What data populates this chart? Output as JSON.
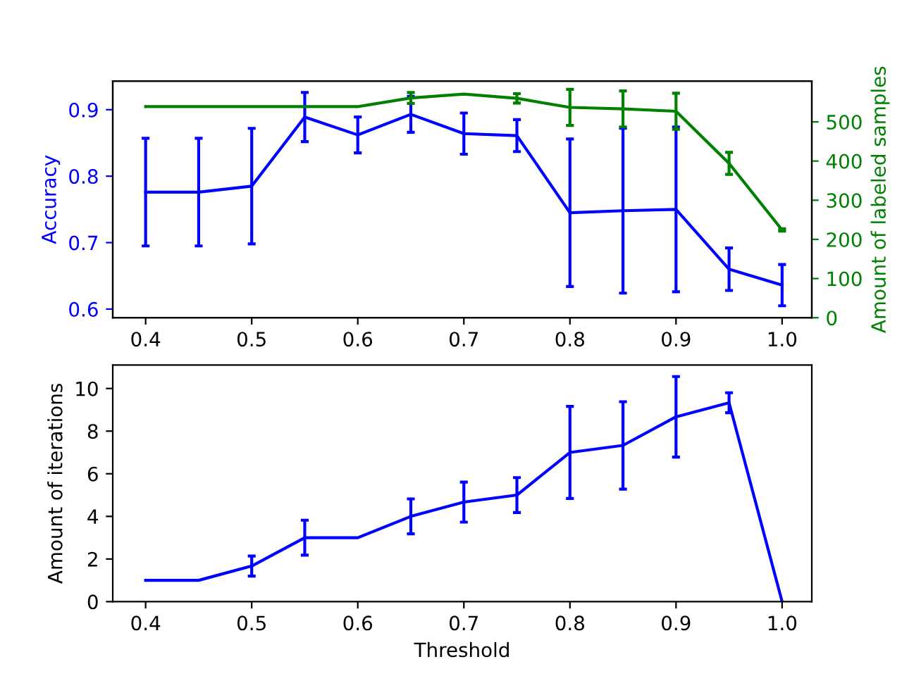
{
  "chart_data": [
    {
      "type": "line",
      "ylabel": "Accuracy",
      "y2label": "Amount of labeled samples",
      "grid": false,
      "marker": "none",
      "line_style": "solid",
      "x": [
        0.4,
        0.45,
        0.5,
        0.55,
        0.6,
        0.65,
        0.7,
        0.75,
        0.8,
        0.85,
        0.9,
        0.95,
        1.0
      ],
      "xlim": [
        0.369,
        1.028
      ],
      "xticks": [
        0.4,
        0.5,
        0.6,
        0.7,
        0.8,
        0.9,
        {
          "value": 1.0,
          "label": "1.0"
        }
      ],
      "ylim": [
        0.587,
        0.943
      ],
      "yticks": [
        0.6,
        0.7,
        0.8,
        0.9
      ],
      "y2lim": [
        0,
        604
      ],
      "y2ticks": [
        0,
        100,
        200,
        300,
        400,
        500
      ],
      "series": [
        {
          "color": "#0000ff",
          "values": [
            0.776,
            0.776,
            0.785,
            0.889,
            0.862,
            0.893,
            0.864,
            0.861,
            0.745,
            0.748,
            0.75,
            0.66,
            0.636
          ],
          "errors": [
            0.081,
            0.081,
            0.087,
            0.037,
            0.027,
            0.027,
            0.031,
            0.024,
            0.111,
            0.124,
            0.124,
            0.032,
            0.031
          ]
        },
        {
          "color": "#008000",
          "axis": "y2",
          "values": [
            539,
            539,
            539,
            539,
            539,
            561,
            571,
            560,
            537,
            533,
            527,
            394,
            224
          ],
          "errors": [
            null,
            null,
            null,
            null,
            null,
            14,
            null,
            12,
            46,
            46,
            46,
            28,
            3
          ]
        }
      ]
    },
    {
      "type": "line",
      "xlabel": "Threshold",
      "ylabel": "Amount of iterations",
      "grid": false,
      "marker": "none",
      "line_style": "solid",
      "x": [
        0.4,
        0.45,
        0.5,
        0.55,
        0.6,
        0.65,
        0.7,
        0.75,
        0.8,
        0.85,
        0.9,
        0.95,
        1.0
      ],
      "xlim": [
        0.369,
        1.028
      ],
      "xticks": [
        0.4,
        0.5,
        0.6,
        0.7,
        0.8,
        0.9,
        {
          "value": 1.0,
          "label": "1.0"
        }
      ],
      "ylim": [
        0,
        11.1
      ],
      "yticks": [
        0,
        2,
        4,
        6,
        8,
        10
      ],
      "series": [
        {
          "color": "#0000ff",
          "values": [
            1,
            1,
            1.67,
            3,
            3,
            4,
            4.67,
            5,
            7,
            7.33,
            8.67,
            9.33,
            0
          ],
          "errors": [
            null,
            null,
            0.47,
            0.82,
            null,
            0.82,
            0.94,
            0.82,
            2.16,
            2.05,
            1.89,
            0.47,
            null
          ]
        }
      ]
    }
  ]
}
